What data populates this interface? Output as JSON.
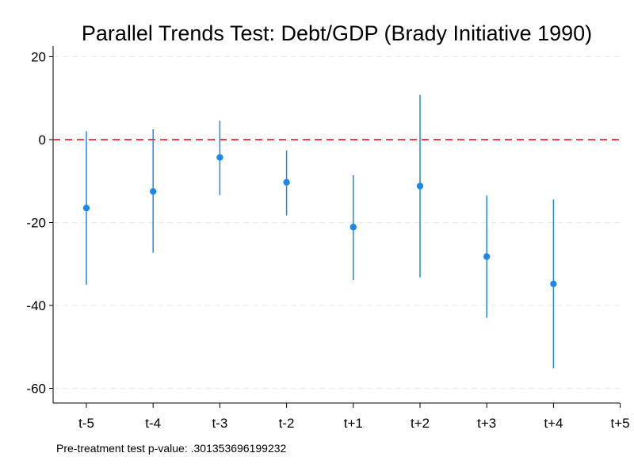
{
  "chart_data": {
    "type": "scatter",
    "subtype": "coefficient-plot-with-confidence-intervals",
    "title": "Parallel Trends Test: Debt/GDP (Brady Initiative 1990)",
    "xlabel": "",
    "ylabel": "",
    "categories": [
      "t-5",
      "t-4",
      "t-3",
      "t-2",
      "t+1",
      "t+2",
      "t+3",
      "t+4",
      "t+5"
    ],
    "series": [
      {
        "color": "#1e88e5",
        "estimates": [
          -16.5,
          -12.5,
          -4.3,
          -10.3,
          -21.1,
          -11.2,
          -28.2,
          -34.8,
          null
        ],
        "ci_lower": [
          -35.0,
          -27.3,
          -13.4,
          -18.3,
          -33.9,
          -33.2,
          -43.0,
          -55.2,
          null
        ],
        "ci_upper": [
          2.0,
          2.5,
          4.6,
          -2.6,
          -8.6,
          10.8,
          -13.5,
          -14.4,
          null
        ]
      }
    ],
    "y_ticks": [
      20,
      0,
      -20,
      -40,
      -60
    ],
    "ylim": [
      -62.5,
      22.5
    ],
    "reference_line": {
      "y": 0,
      "color": "#e8000b",
      "style": "dashed"
    },
    "grid": true,
    "note": "Pre-treatment test p-value: .301353696199232"
  }
}
